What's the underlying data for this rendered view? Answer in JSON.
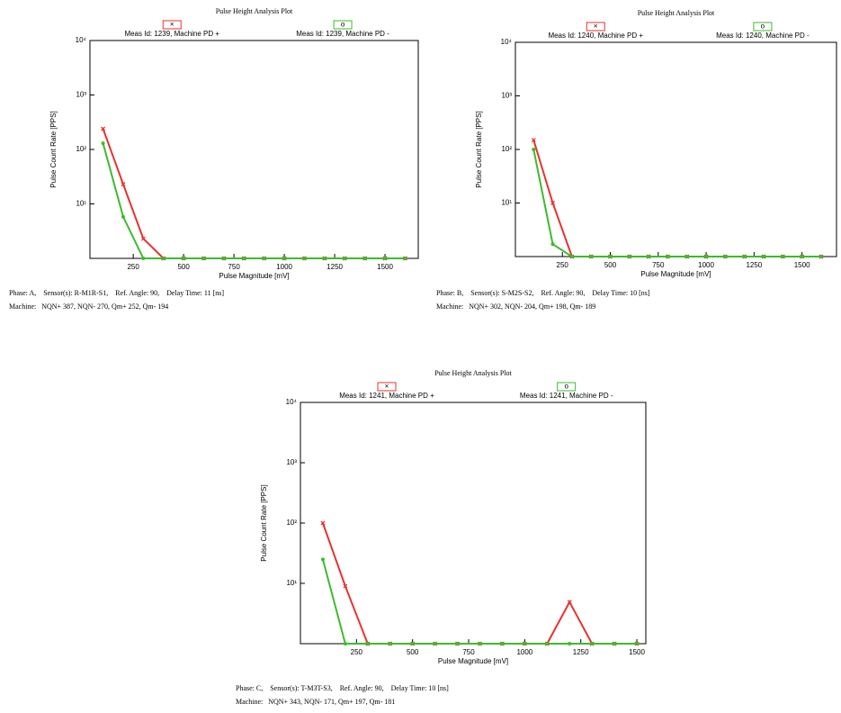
{
  "chart_data": [
    {
      "type": "line",
      "title": "Pulse Height Analysis Plot",
      "xlabel": "Pulse Magnitude [mV]",
      "ylabel": "Pulse Count Rate [PPS]",
      "log_y": true,
      "xlim": [
        35,
        1665
      ],
      "ylim": [
        1,
        10000
      ],
      "xticks": [
        250,
        500,
        750,
        1000,
        1250,
        1500
      ],
      "yticks": [
        {
          "value": 10,
          "label": "10¹"
        },
        {
          "value": 100,
          "label": "10²"
        },
        {
          "value": 1000,
          "label": "10³"
        },
        {
          "value": 10000,
          "label": "10⁴"
        }
      ],
      "x": [
        100,
        200,
        300,
        400,
        500,
        600,
        700,
        800,
        900,
        1000,
        1100,
        1200,
        1300,
        1400,
        1500,
        1600
      ],
      "series": [
        {
          "name": "Meas Id: 1239, Machine PD +",
          "color": "#e8322d",
          "marker": "x",
          "values": [
            240,
            23,
            2.3,
            1,
            1,
            1,
            1,
            1,
            1,
            1,
            1,
            1,
            1,
            1,
            1,
            1
          ]
        },
        {
          "name": "Meas Id: 1239, Machine PD -",
          "color": "#3dbb2e",
          "marker": "o",
          "values": [
            130,
            5.8,
            1,
            1,
            1,
            1,
            1,
            1,
            1,
            1,
            1,
            1,
            1,
            1,
            1,
            1
          ]
        }
      ],
      "caption": [
        "Phase: A,    Sensor(s): R-M1R-S1,    Ref. Angle: 90,    Delay Time: 11 [ns]",
        "Machine:   NQN+ 387, NQN- 270, Qm+ 252, Qm- 194"
      ]
    },
    {
      "type": "line",
      "title": "Pulse Height Analysis Plot",
      "xlabel": "Pulse Magnitude [mV]",
      "ylabel": "Pulse Count Rate [PPS]",
      "log_y": true,
      "xlim": [
        5,
        1680
      ],
      "ylim": [
        1,
        10000
      ],
      "xticks": [
        250,
        500,
        750,
        1000,
        1250,
        1500
      ],
      "yticks": [
        {
          "value": 10,
          "label": "10¹"
        },
        {
          "value": 100,
          "label": "10²"
        },
        {
          "value": 1000,
          "label": "10³"
        },
        {
          "value": 10000,
          "label": "10⁴"
        }
      ],
      "x": [
        100,
        200,
        300,
        400,
        500,
        600,
        700,
        800,
        900,
        1000,
        1100,
        1200,
        1300,
        1400,
        1500,
        1600
      ],
      "series": [
        {
          "name": "Meas Id: 1240, Machine PD +",
          "color": "#e8322d",
          "marker": "x",
          "values": [
            150,
            10,
            1,
            1,
            1,
            1,
            1,
            1,
            1,
            1,
            1,
            1,
            1,
            1,
            1,
            1
          ]
        },
        {
          "name": "Meas Id: 1240, Machine PD -",
          "color": "#3dbb2e",
          "marker": "o",
          "values": [
            100,
            1.7,
            1,
            1,
            1,
            1,
            1,
            1,
            1,
            1,
            1,
            1,
            1,
            1,
            1,
            1
          ]
        }
      ],
      "caption": [
        "Phase: B,    Sensor(s): S-M2S-S2,    Ref. Angle: 90,    Delay Time: 10 [ns]",
        "Machine:   NQN+ 302, NQN- 204, Qm+ 198, Qm- 189"
      ]
    },
    {
      "type": "line",
      "title": "Pulse Height Analysis Plot",
      "xlabel": "Pulse Magnitude [mV]",
      "ylabel": "Pulse Count Rate [PPS]",
      "log_y": true,
      "xlim": [
        0,
        1540
      ],
      "ylim": [
        1,
        10000
      ],
      "xticks": [
        250,
        500,
        750,
        1000,
        1250,
        1500
      ],
      "yticks": [
        {
          "value": 10,
          "label": "10¹"
        },
        {
          "value": 100,
          "label": "10²"
        },
        {
          "value": 1000,
          "label": "10³"
        },
        {
          "value": 10000,
          "label": "10⁴"
        }
      ],
      "x": [
        100,
        200,
        300,
        400,
        500,
        600,
        700,
        800,
        900,
        1000,
        1100,
        1200,
        1300,
        1400,
        1500
      ],
      "series": [
        {
          "name": "Meas Id: 1241, Machine PD +",
          "color": "#e8322d",
          "marker": "x",
          "values": [
            100,
            9,
            1,
            1,
            1,
            1,
            1,
            1,
            1,
            1,
            1,
            4.9,
            1,
            1,
            1
          ]
        },
        {
          "name": "Meas Id: 1241, Machine PD -",
          "color": "#3dbb2e",
          "marker": "o",
          "values": [
            25,
            1,
            1,
            1,
            1,
            1,
            1,
            1,
            1,
            1,
            1,
            1,
            1,
            1,
            1
          ]
        }
      ],
      "caption": [
        "Phase: C,    Sensor(s): T-M3T-S3,    Ref. Angle: 90,    Delay Time: 10 [ns]",
        "Machine:   NQN+ 343, NQN- 171, Qm+ 197, Qm- 181"
      ]
    }
  ]
}
